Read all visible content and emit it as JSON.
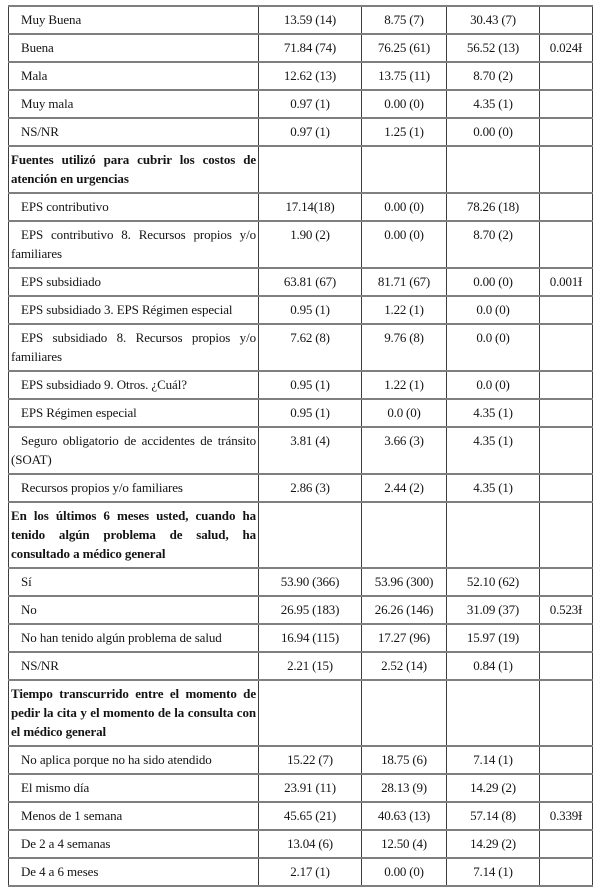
{
  "document": {
    "kind": "statistical-table",
    "language": "es",
    "p_value_marker": "Ɨ",
    "border_color_horizontal": "#7f7f7f",
    "border_color_vertical": "#3d3d3d",
    "text_color": "#141414",
    "background_color": "#ffffff"
  },
  "table": {
    "rows": [
      {
        "type": "item",
        "label": "Muy Buena",
        "c1": "13.59 (14)",
        "c2": "8.75 (7)",
        "c3": "30.43 (7)",
        "p": ""
      },
      {
        "type": "item",
        "label": "Buena",
        "c1": "71.84 (74)",
        "c2": "76.25 (61)",
        "c3": "56.52 (13)",
        "p": "0.024Ɨ"
      },
      {
        "type": "item",
        "label": "Mala",
        "c1": "12.62 (13)",
        "c2": "13.75 (11)",
        "c3": "8.70 (2)",
        "p": ""
      },
      {
        "type": "item",
        "label": "Muy mala",
        "c1": "0.97 (1)",
        "c2": "0.00 (0)",
        "c3": "4.35 (1)",
        "p": ""
      },
      {
        "type": "item",
        "label": "NS/NR",
        "c1": "0.97 (1)",
        "c2": "1.25 (1)",
        "c3": "0.00 (0)",
        "p": ""
      },
      {
        "type": "section",
        "label": "Fuentes utilizó para cubrir los costos de atención en urgencias",
        "c1": "",
        "c2": "",
        "c3": "",
        "p": ""
      },
      {
        "type": "item",
        "label": "EPS contributivo",
        "c1": "17.14(18)",
        "c2": "0.00 (0)",
        "c3": "78.26 (18)",
        "p": ""
      },
      {
        "type": "item",
        "label": "EPS contributivo 8. Recursos propios y/o familiares",
        "c1": "1.90 (2)",
        "c2": "0.00 (0)",
        "c3": "8.70 (2)",
        "p": ""
      },
      {
        "type": "item",
        "label": "EPS subsidiado",
        "c1": "63.81 (67)",
        "c2": "81.71 (67)",
        "c3": "0.00 (0)",
        "p": "0.001Ɨ"
      },
      {
        "type": "item",
        "label": "EPS subsidiado 3. EPS Régimen especial",
        "c1": "0.95 (1)",
        "c2": "1.22 (1)",
        "c3": "0.0 (0)",
        "p": ""
      },
      {
        "type": "item",
        "label": "EPS subsidiado 8. Recursos propios y/o familiares",
        "c1": "7.62 (8)",
        "c2": "9.76 (8)",
        "c3": "0.0 (0)",
        "p": ""
      },
      {
        "type": "item",
        "label": "EPS subsidiado 9. Otros. ¿Cuál?",
        "c1": "0.95 (1)",
        "c2": "1.22 (1)",
        "c3": "0.0 (0)",
        "p": ""
      },
      {
        "type": "item",
        "label": "EPS Régimen especial",
        "c1": "0.95 (1)",
        "c2": "0.0 (0)",
        "c3": "4.35 (1)",
        "p": ""
      },
      {
        "type": "item",
        "label": "Seguro obligatorio de accidentes de tránsito (SOAT)",
        "c1": "3.81 (4)",
        "c2": "3.66 (3)",
        "c3": "4.35 (1)",
        "p": ""
      },
      {
        "type": "item",
        "label": "Recursos propios y/o familiares",
        "c1": "2.86 (3)",
        "c2": "2.44 (2)",
        "c3": "4.35 (1)",
        "p": ""
      },
      {
        "type": "section",
        "label": "En los últimos 6 meses usted, cuando ha tenido algún problema de salud, ha consultado a médico general",
        "c1": "",
        "c2": "",
        "c3": "",
        "p": ""
      },
      {
        "type": "item",
        "label": "Sí",
        "c1": "53.90 (366)",
        "c2": "53.96 (300)",
        "c3": "52.10 (62)",
        "p": ""
      },
      {
        "type": "item",
        "label": "No",
        "c1": "26.95 (183)",
        "c2": "26.26 (146)",
        "c3": "31.09 (37)",
        "p": "0.523Ɨ"
      },
      {
        "type": "item",
        "label": "No han tenido algún problema de salud",
        "c1": "16.94 (115)",
        "c2": "17.27 (96)",
        "c3": "15.97 (19)",
        "p": ""
      },
      {
        "type": "item",
        "label": "NS/NR",
        "c1": "2.21 (15)",
        "c2": "2.52 (14)",
        "c3": "0.84 (1)",
        "p": ""
      },
      {
        "type": "section",
        "label": "Tiempo transcurrido entre el momento de pedir la cita y el momento de la consulta con el médico general",
        "c1": "",
        "c2": "",
        "c3": "",
        "p": ""
      },
      {
        "type": "item",
        "label": "No aplica porque no ha sido atendido",
        "c1": "15.22 (7)",
        "c2": "18.75 (6)",
        "c3": "7.14 (1)",
        "p": ""
      },
      {
        "type": "item",
        "label": "El mismo día",
        "c1": "23.91 (11)",
        "c2": "28.13 (9)",
        "c3": "14.29 (2)",
        "p": ""
      },
      {
        "type": "item",
        "label": "Menos de 1 semana",
        "c1": "45.65 (21)",
        "c2": "40.63 (13)",
        "c3": "57.14 (8)",
        "p": "0.339Ɨ"
      },
      {
        "type": "item",
        "label": "De 2 a 4 semanas",
        "c1": "13.04 (6)",
        "c2": "12.50 (4)",
        "c3": "14.29 (2)",
        "p": ""
      },
      {
        "type": "item",
        "label": "De 4 a 6 meses",
        "c1": "2.17 (1)",
        "c2": "0.00 (0)",
        "c3": "7.14 (1)",
        "p": ""
      }
    ]
  }
}
